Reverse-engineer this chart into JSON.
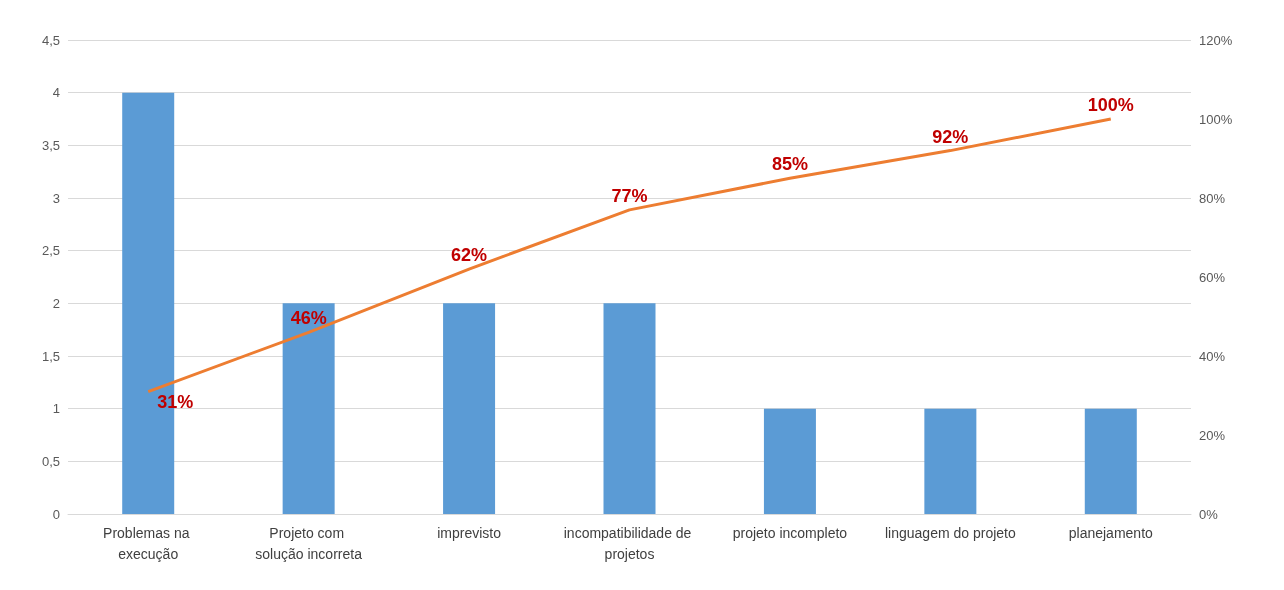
{
  "chart_data": {
    "type": "bar",
    "categories": [
      "Problemas na execução",
      "Projeto com solução incorreta",
      "imprevisto",
      "incompatibilidade de projetos",
      "projeto incompleto",
      "linguagem do projeto",
      "planejamento"
    ],
    "series": [
      {
        "color": "#5b9bd5",
        "values": [
          4,
          2,
          2,
          2,
          1,
          1,
          1
        ]
      },
      {
        "type": "line",
        "axis": "y2",
        "color": "#ed7d31",
        "values": [
          31,
          46,
          62,
          77,
          85,
          92,
          100
        ],
        "value_labels": [
          "31%",
          "46%",
          "62%",
          "77%",
          "85%",
          "92%",
          "100%"
        ]
      }
    ],
    "ylim": [
      0,
      4.5
    ],
    "yticks": [
      0,
      {
        "value": 0.5,
        "label": "0,5"
      },
      1,
      {
        "value": 1.5,
        "label": "1,5"
      },
      2,
      {
        "value": 2.5,
        "label": "2,5"
      },
      3,
      {
        "value": 3.5,
        "label": "3,5"
      },
      4,
      {
        "value": 4.5,
        "label": "4,5"
      }
    ],
    "y2lim": [
      0,
      120
    ],
    "y2ticks": [
      {
        "value": 0,
        "label": "0%"
      },
      {
        "value": 20,
        "label": "20%"
      },
      {
        "value": 40,
        "label": "40%"
      },
      {
        "value": 60,
        "label": "60%"
      },
      {
        "value": 80,
        "label": "80%"
      },
      {
        "value": 100,
        "label": "100%"
      },
      {
        "value": 120,
        "label": "120%"
      }
    ],
    "grid": "y",
    "marker": "none"
  }
}
